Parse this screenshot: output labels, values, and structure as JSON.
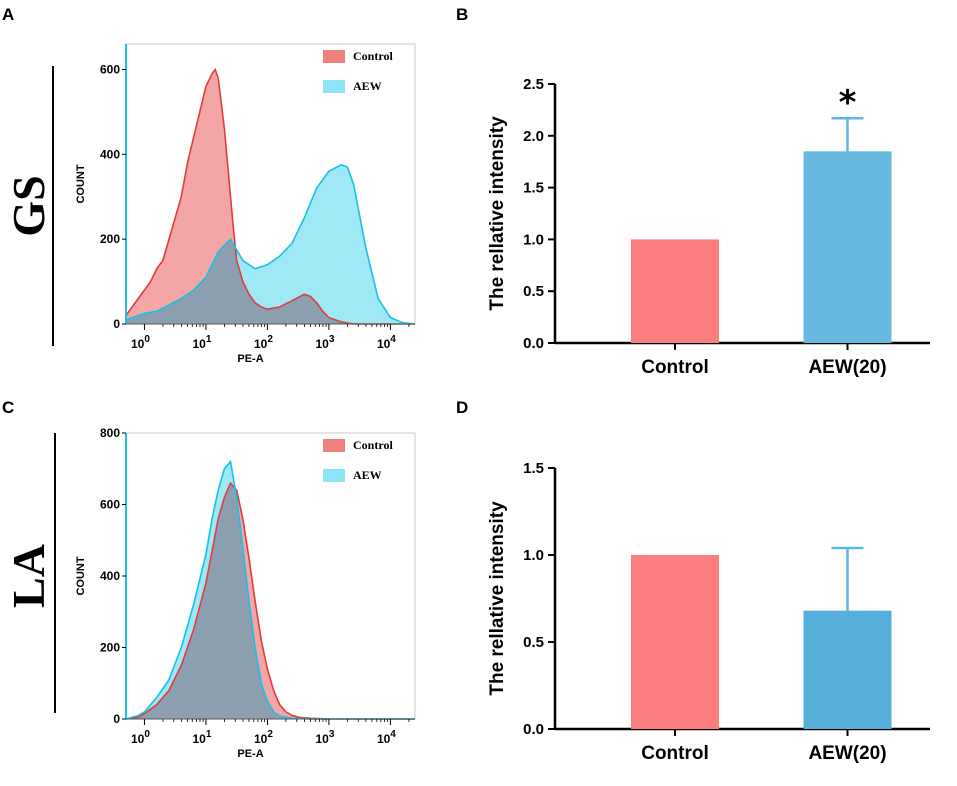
{
  "colors": {
    "control_fill": "#f08080",
    "control_stroke": "#e03c3c",
    "aew_fill": "#8ee4f5",
    "aew_stroke": "#17c1e8",
    "overlap_fill": "#8c9fb0",
    "bar_control": "#fb7f7f",
    "bar_aew": "#68b9e0",
    "bar_aew_d": "#56aedb",
    "error": "#5ab6e3"
  },
  "panel_labels": {
    "a": "A",
    "b": "B",
    "c": "C",
    "d": "D"
  },
  "row_labels": {
    "top": "GS",
    "bottom": "LA"
  },
  "chart_data": [
    {
      "id": "A",
      "type": "area",
      "title": "",
      "xlabel": "PE-A",
      "ylabel": "COUNT",
      "x_scale": "log10",
      "xlim_log": [
        -0.3,
        4.4
      ],
      "ylim": [
        0,
        660
      ],
      "x_ticks": [
        {
          "base": "10",
          "exp": "0",
          "log": 0
        },
        {
          "base": "10",
          "exp": "1",
          "log": 1
        },
        {
          "base": "10",
          "exp": "2",
          "log": 2
        },
        {
          "base": "10",
          "exp": "3",
          "log": 3
        },
        {
          "base": "10",
          "exp": "4",
          "log": 4
        }
      ],
      "y_ticks": [
        "0",
        "200",
        "400",
        "600"
      ],
      "legend": [
        "Control",
        "AEW"
      ],
      "legend_position": "top-right",
      "series": [
        {
          "name": "Control",
          "log_x": [
            -0.3,
            -0.2,
            -0.1,
            0.0,
            0.1,
            0.2,
            0.3,
            0.4,
            0.5,
            0.6,
            0.7,
            0.8,
            0.9,
            1.0,
            1.05,
            1.1,
            1.15,
            1.2,
            1.25,
            1.3,
            1.35,
            1.4,
            1.45,
            1.5,
            1.6,
            1.7,
            1.8,
            1.9,
            2.0,
            2.2,
            2.4,
            2.6,
            2.7,
            2.8,
            2.9,
            3.0,
            3.2,
            3.4,
            4.4
          ],
          "counts": [
            20,
            40,
            60,
            80,
            100,
            130,
            150,
            200,
            250,
            300,
            380,
            440,
            500,
            560,
            575,
            590,
            600,
            580,
            520,
            460,
            380,
            300,
            220,
            150,
            100,
            70,
            50,
            40,
            35,
            40,
            55,
            70,
            65,
            50,
            30,
            15,
            5,
            0,
            0
          ]
        },
        {
          "name": "AEW",
          "log_x": [
            -0.3,
            -0.1,
            0.0,
            0.2,
            0.4,
            0.6,
            0.8,
            1.0,
            1.2,
            1.4,
            1.6,
            1.8,
            2.0,
            2.2,
            2.4,
            2.6,
            2.8,
            3.0,
            3.2,
            3.3,
            3.4,
            3.6,
            3.8,
            4.0,
            4.2,
            4.4
          ],
          "counts": [
            10,
            20,
            25,
            30,
            45,
            60,
            80,
            110,
            170,
            200,
            150,
            130,
            140,
            160,
            190,
            250,
            320,
            360,
            375,
            370,
            330,
            180,
            60,
            15,
            3,
            0
          ]
        }
      ]
    },
    {
      "id": "B",
      "type": "bar",
      "categories": [
        "Control",
        "AEW(20)"
      ],
      "values": [
        1.0,
        1.85
      ],
      "error_upper": [
        0,
        0.32
      ],
      "significance": [
        "",
        "*"
      ],
      "ylabel": "The rellative intensity",
      "xlabel": "",
      "ylim": [
        0,
        2.5
      ],
      "y_ticks": [
        "0.0",
        "0.5",
        "1.0",
        "1.5",
        "2.0",
        "2.5"
      ]
    },
    {
      "id": "C",
      "type": "area",
      "title": "",
      "xlabel": "PE-A",
      "ylabel": "COUNT",
      "x_scale": "log10",
      "xlim_log": [
        -0.3,
        4.4
      ],
      "ylim": [
        0,
        800
      ],
      "x_ticks": [
        {
          "base": "10",
          "exp": "0",
          "log": 0
        },
        {
          "base": "10",
          "exp": "1",
          "log": 1
        },
        {
          "base": "10",
          "exp": "2",
          "log": 2
        },
        {
          "base": "10",
          "exp": "3",
          "log": 3
        },
        {
          "base": "10",
          "exp": "4",
          "log": 4
        }
      ],
      "y_ticks": [
        "0",
        "200",
        "400",
        "600",
        "800"
      ],
      "legend": [
        "Control",
        "AEW"
      ],
      "legend_position": "top-right",
      "series": [
        {
          "name": "Control",
          "log_x": [
            -0.3,
            -0.1,
            0.0,
            0.2,
            0.4,
            0.6,
            0.8,
            1.0,
            1.1,
            1.2,
            1.3,
            1.4,
            1.5,
            1.6,
            1.7,
            1.8,
            1.9,
            2.0,
            2.1,
            2.2,
            2.3,
            2.4,
            2.5,
            2.7,
            3.0,
            4.4
          ],
          "counts": [
            0,
            5,
            15,
            40,
            80,
            150,
            250,
            380,
            470,
            560,
            620,
            660,
            640,
            560,
            450,
            330,
            220,
            140,
            80,
            40,
            20,
            10,
            5,
            2,
            0,
            0
          ]
        },
        {
          "name": "AEW",
          "log_x": [
            -0.3,
            -0.1,
            0.0,
            0.2,
            0.4,
            0.6,
            0.8,
            1.0,
            1.1,
            1.2,
            1.3,
            1.4,
            1.5,
            1.6,
            1.7,
            1.8,
            1.9,
            2.0,
            2.1,
            2.2,
            2.4,
            2.7,
            3.0,
            4.4
          ],
          "counts": [
            0,
            10,
            20,
            60,
            110,
            200,
            320,
            460,
            560,
            640,
            700,
            720,
            620,
            480,
            330,
            200,
            100,
            50,
            20,
            8,
            2,
            0,
            0,
            0
          ]
        }
      ]
    },
    {
      "id": "D",
      "type": "bar",
      "categories": [
        "Control",
        "AEW(20)"
      ],
      "values": [
        1.0,
        0.68
      ],
      "error_upper": [
        0,
        0.36
      ],
      "significance": [
        "",
        ""
      ],
      "ylabel": "The rellative intensity",
      "xlabel": "",
      "ylim": [
        0,
        1.5
      ],
      "y_ticks": [
        "0.0",
        "0.5",
        "1.0",
        "1.5"
      ]
    }
  ]
}
